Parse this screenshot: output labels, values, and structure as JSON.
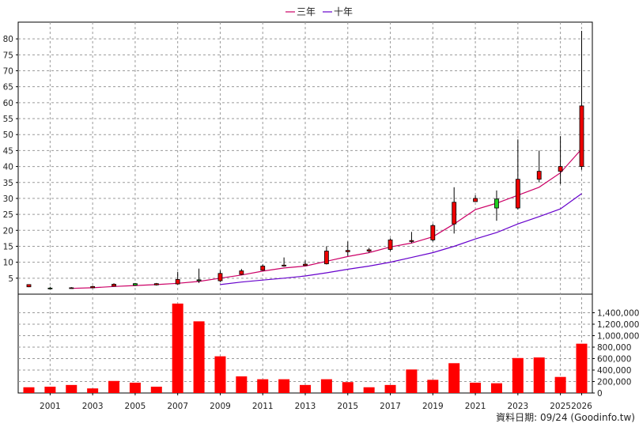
{
  "chart_data": {
    "type": "candlestick+bar",
    "legend": {
      "placement": "top-center",
      "items": [
        {
          "name": "三年",
          "color": "#cc0066"
        },
        {
          "name": "十年",
          "color": "#6600cc"
        }
      ]
    },
    "source_note": "資料日期: 09/24 (Goodinfo.tw)",
    "grid": true,
    "x": {
      "years": [
        2000,
        2001,
        2002,
        2003,
        2004,
        2005,
        2006,
        2007,
        2008,
        2009,
        2010,
        2011,
        2012,
        2013,
        2014,
        2015,
        2016,
        2017,
        2018,
        2019,
        2020,
        2021,
        2022,
        2023,
        2024,
        2025,
        2026
      ],
      "tick_labels": [
        "2001",
        "2003",
        "2005",
        "2007",
        "2009",
        "2011",
        "2013",
        "2015",
        "2017",
        "2019",
        "2021",
        "2023",
        "2025",
        "2026"
      ],
      "grid_years": [
        2001,
        2003,
        2005,
        2007,
        2009,
        2011,
        2013,
        2015,
        2017,
        2019,
        2021,
        2023,
        2025,
        2026
      ]
    },
    "price_axis": {
      "ylim": [
        0,
        84
      ],
      "ticks": [
        5,
        10,
        15,
        20,
        25,
        30,
        35,
        40,
        45,
        50,
        55,
        60,
        65,
        70,
        75,
        80
      ],
      "tick_labels": [
        "5",
        "10",
        "15",
        "20",
        "25",
        "30",
        "35",
        "40",
        "45",
        "50",
        "55",
        "60",
        "65",
        "70",
        "75",
        "80"
      ]
    },
    "volume_axis": {
      "ylim": [
        0,
        1600000
      ],
      "ticks": [
        0,
        200000,
        400000,
        600000,
        800000,
        1000000,
        1200000,
        1400000
      ],
      "tick_labels": [
        "0",
        "200,000",
        "400,000",
        "600,000",
        "800,000",
        "1,000,000",
        "1,200,000",
        "1,400,000"
      ]
    },
    "candles": [
      {
        "year": 2000,
        "open": 2.3,
        "close": 3.0,
        "high": 3.1,
        "low": 2.2
      },
      {
        "year": 2001,
        "open": 1.9,
        "close": 1.8,
        "high": 2.3,
        "low": 1.5
      },
      {
        "year": 2002,
        "open": 2.0,
        "close": 2.0,
        "high": 2.2,
        "low": 1.8
      },
      {
        "year": 2003,
        "open": 2.0,
        "close": 2.4,
        "high": 2.6,
        "low": 1.9
      },
      {
        "year": 2004,
        "open": 2.5,
        "close": 3.1,
        "high": 3.4,
        "low": 2.4
      },
      {
        "year": 2005,
        "open": 3.3,
        "close": 2.8,
        "high": 3.5,
        "low": 2.6
      },
      {
        "year": 2006,
        "open": 2.9,
        "close": 3.3,
        "high": 3.5,
        "low": 2.7
      },
      {
        "year": 2007,
        "open": 3.2,
        "close": 4.6,
        "high": 7.0,
        "low": 3.0
      },
      {
        "year": 2008,
        "open": 4.5,
        "close": 4.2,
        "high": 8.0,
        "low": 3.5
      },
      {
        "year": 2009,
        "open": 4.2,
        "close": 6.5,
        "high": 7.5,
        "low": 3.8
      },
      {
        "year": 2010,
        "open": 6.2,
        "close": 7.3,
        "high": 7.9,
        "low": 6.0
      },
      {
        "year": 2011,
        "open": 7.5,
        "close": 8.8,
        "high": 9.3,
        "low": 7.3
      },
      {
        "year": 2012,
        "open": 8.8,
        "close": 9.1,
        "high": 11.5,
        "low": 8.6
      },
      {
        "year": 2013,
        "open": 9.0,
        "close": 9.4,
        "high": 10.6,
        "low": 8.9
      },
      {
        "year": 2014,
        "open": 9.5,
        "close": 13.5,
        "high": 15.0,
        "low": 9.3
      },
      {
        "year": 2015,
        "open": 13.3,
        "close": 13.7,
        "high": 16.5,
        "low": 12.0
      },
      {
        "year": 2016,
        "open": 13.5,
        "close": 13.9,
        "high": 14.5,
        "low": 13.0
      },
      {
        "year": 2017,
        "open": 14.0,
        "close": 17.0,
        "high": 17.5,
        "low": 13.5
      },
      {
        "year": 2018,
        "open": 16.5,
        "close": 16.8,
        "high": 19.5,
        "low": 16.0
      },
      {
        "year": 2019,
        "open": 17.0,
        "close": 21.5,
        "high": 22.0,
        "low": 16.5
      },
      {
        "year": 2020,
        "open": 22.0,
        "close": 28.8,
        "high": 33.5,
        "low": 19.0
      },
      {
        "year": 2021,
        "open": 29.0,
        "close": 30.0,
        "high": 31.0,
        "low": 29.0
      },
      {
        "year": 2022,
        "open": 29.8,
        "close": 27.0,
        "high": 32.5,
        "low": 23.0
      },
      {
        "year": 2023,
        "open": 27.0,
        "close": 36.0,
        "high": 48.5,
        "low": 26.5
      },
      {
        "year": 2024,
        "open": 36.0,
        "close": 38.5,
        "high": 45.0,
        "low": 35.0
      },
      {
        "year": 2025,
        "open": 38.5,
        "close": 40.0,
        "high": 49.5,
        "low": 34.5
      },
      {
        "year": 2026,
        "open": 40.0,
        "close": 59.0,
        "high": 82.5,
        "low": 39.0
      }
    ],
    "series": [
      {
        "name": "三年",
        "color": "#cc0066",
        "points": [
          [
            2002,
            1.8
          ],
          [
            2003,
            2.0
          ],
          [
            2004,
            2.4
          ],
          [
            2005,
            2.7
          ],
          [
            2006,
            3.0
          ],
          [
            2007,
            3.4
          ],
          [
            2008,
            4.0
          ],
          [
            2009,
            5.0
          ],
          [
            2010,
            6.0
          ],
          [
            2011,
            7.2
          ],
          [
            2012,
            8.2
          ],
          [
            2013,
            8.8
          ],
          [
            2014,
            10.3
          ],
          [
            2015,
            11.8
          ],
          [
            2016,
            13.0
          ],
          [
            2017,
            14.8
          ],
          [
            2018,
            16.0
          ],
          [
            2019,
            18.0
          ],
          [
            2020,
            22.0
          ],
          [
            2021,
            26.5
          ],
          [
            2022,
            28.5
          ],
          [
            2023,
            31.0
          ],
          [
            2024,
            33.5
          ],
          [
            2025,
            38.0
          ],
          [
            2026,
            45.5
          ]
        ]
      },
      {
        "name": "十年",
        "color": "#6600cc",
        "points": [
          [
            2009,
            3.0
          ],
          [
            2010,
            3.8
          ],
          [
            2011,
            4.4
          ],
          [
            2012,
            5.0
          ],
          [
            2013,
            5.7
          ],
          [
            2014,
            6.7
          ],
          [
            2015,
            7.8
          ],
          [
            2016,
            8.8
          ],
          [
            2017,
            10.0
          ],
          [
            2018,
            11.5
          ],
          [
            2019,
            13.0
          ],
          [
            2020,
            15.0
          ],
          [
            2021,
            17.3
          ],
          [
            2022,
            19.3
          ],
          [
            2023,
            22.0
          ],
          [
            2024,
            24.3
          ],
          [
            2025,
            26.7
          ],
          [
            2026,
            31.5
          ]
        ]
      }
    ],
    "volume": [
      {
        "year": 2000,
        "value": 100000
      },
      {
        "year": 2001,
        "value": 110000
      },
      {
        "year": 2002,
        "value": 140000
      },
      {
        "year": 2003,
        "value": 80000
      },
      {
        "year": 2004,
        "value": 210000
      },
      {
        "year": 2005,
        "value": 180000
      },
      {
        "year": 2006,
        "value": 110000
      },
      {
        "year": 2007,
        "value": 1560000
      },
      {
        "year": 2008,
        "value": 1250000
      },
      {
        "year": 2009,
        "value": 640000
      },
      {
        "year": 2010,
        "value": 290000
      },
      {
        "year": 2011,
        "value": 240000
      },
      {
        "year": 2012,
        "value": 240000
      },
      {
        "year": 2013,
        "value": 140000
      },
      {
        "year": 2014,
        "value": 240000
      },
      {
        "year": 2015,
        "value": 190000
      },
      {
        "year": 2016,
        "value": 100000
      },
      {
        "year": 2017,
        "value": 140000
      },
      {
        "year": 2018,
        "value": 410000
      },
      {
        "year": 2019,
        "value": 230000
      },
      {
        "year": 2020,
        "value": 520000
      },
      {
        "year": 2021,
        "value": 180000
      },
      {
        "year": 2022,
        "value": 170000
      },
      {
        "year": 2023,
        "value": 610000
      },
      {
        "year": 2024,
        "value": 620000
      },
      {
        "year": 2025,
        "value": 280000
      },
      {
        "year": 2026,
        "value": 860000
      }
    ],
    "colors": {
      "up": "#ee0000",
      "down": "#22cc22",
      "wick": "#000000",
      "volume": "#ff0000",
      "grid": "#9a9a9a",
      "axis": "#000000"
    }
  }
}
